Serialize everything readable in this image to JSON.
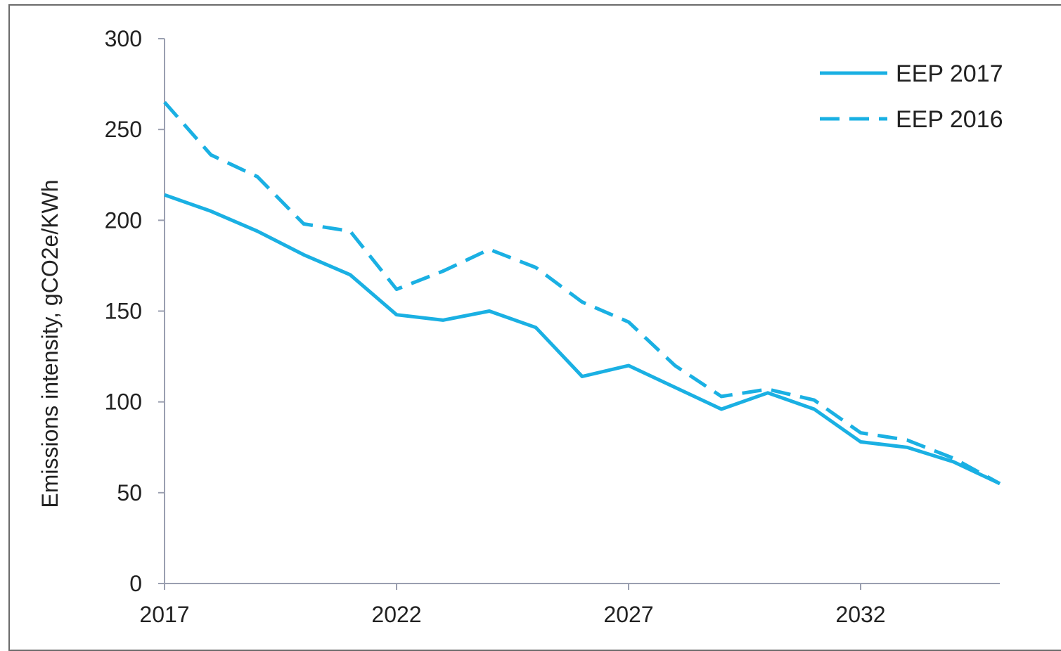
{
  "chart_data": {
    "type": "line",
    "title": "",
    "xlabel": "",
    "ylabel": "Emissions intensity, gCO2e/KWh",
    "x": [
      2017,
      2018,
      2019,
      2020,
      2021,
      2022,
      2023,
      2024,
      2025,
      2026,
      2027,
      2028,
      2029,
      2030,
      2031,
      2032,
      2033,
      2034,
      2035
    ],
    "xlim": [
      2017,
      2035
    ],
    "ylim": [
      0,
      300
    ],
    "x_ticks": [
      2017,
      2022,
      2027,
      2032
    ],
    "y_ticks": [
      0,
      50,
      100,
      150,
      200,
      250,
      300
    ],
    "grid": false,
    "legend_position": "top-right",
    "series": [
      {
        "name": "EEP 2017",
        "style": "solid",
        "color": "#1AB0E3",
        "values": [
          214,
          205,
          194,
          181,
          170,
          148,
          145,
          150,
          141,
          114,
          120,
          108,
          96,
          105,
          96,
          78,
          75,
          67,
          55
        ]
      },
      {
        "name": "EEP 2016",
        "style": "dashed",
        "color": "#1AB0E3",
        "values": [
          265,
          236,
          224,
          198,
          194,
          162,
          172,
          184,
          174,
          155,
          144,
          120,
          103,
          107,
          101,
          83,
          79,
          69,
          55
        ]
      }
    ]
  }
}
